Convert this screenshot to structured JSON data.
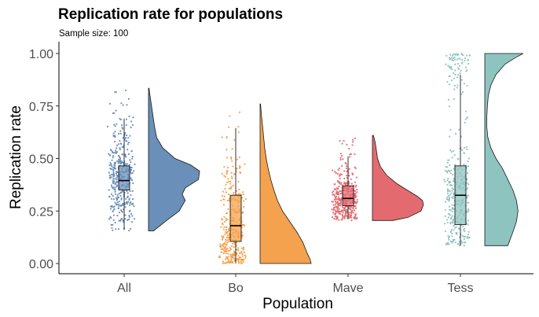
{
  "chart_data": {
    "type": "raincloud",
    "title": "Replication rate for populations",
    "subtitle": "Sample size: 100",
    "xlabel": "Population",
    "ylabel": "Replication rate",
    "ylim": [
      -0.04,
      1.03
    ],
    "y_ticks": [
      0.0,
      0.25,
      0.5,
      0.75,
      1.0
    ],
    "y_tick_labels": [
      "0.00",
      "0.25",
      "0.50",
      "0.75",
      "1.00"
    ],
    "grid": false,
    "legend": "none",
    "categories": [
      "All",
      "Bo",
      "Mave",
      "Tess"
    ],
    "series": [
      {
        "category": "All",
        "color": "#6a8fb8",
        "box": {
          "whisker_low": 0.16,
          "q1": 0.35,
          "median": 0.395,
          "q3": 0.465,
          "whisker_high": 0.69
        },
        "points_range": [
          0.15,
          0.83
        ],
        "density": {
          "y": [
            0.155,
            0.2,
            0.25,
            0.3,
            0.33,
            0.36,
            0.4,
            0.44,
            0.47,
            0.5,
            0.55,
            0.6,
            0.65,
            0.7,
            0.75,
            0.8,
            0.835
          ],
          "d": [
            0.1,
            0.33,
            0.6,
            0.72,
            0.66,
            0.72,
            0.98,
            1.0,
            0.82,
            0.52,
            0.28,
            0.16,
            0.12,
            0.09,
            0.06,
            0.03,
            0.01
          ]
        }
      },
      {
        "category": "Bo",
        "color": "#f4a24e",
        "box": {
          "whisker_low": 0.0,
          "q1": 0.105,
          "median": 0.18,
          "q3": 0.325,
          "whisker_high": 0.645
        },
        "points_range": [
          0.0,
          0.76
        ],
        "density": {
          "y": [
            0.0,
            0.02,
            0.05,
            0.1,
            0.15,
            0.2,
            0.25,
            0.3,
            0.35,
            0.4,
            0.45,
            0.5,
            0.55,
            0.6,
            0.65,
            0.7,
            0.76
          ],
          "d": [
            1.0,
            0.98,
            0.92,
            0.84,
            0.72,
            0.58,
            0.44,
            0.34,
            0.27,
            0.21,
            0.16,
            0.12,
            0.09,
            0.07,
            0.05,
            0.03,
            0.01
          ]
        }
      },
      {
        "category": "Mave",
        "color": "#e36b70",
        "box": {
          "whisker_low": 0.21,
          "q1": 0.275,
          "median": 0.31,
          "q3": 0.37,
          "whisker_high": 0.51
        },
        "points_range": [
          0.2,
          0.62
        ],
        "density": {
          "y": [
            0.205,
            0.22,
            0.25,
            0.28,
            0.3,
            0.32,
            0.35,
            0.38,
            0.42,
            0.46,
            0.5,
            0.55,
            0.58,
            0.61
          ],
          "d": [
            0.4,
            0.7,
            0.95,
            1.0,
            0.98,
            0.88,
            0.68,
            0.48,
            0.28,
            0.16,
            0.1,
            0.07,
            0.05,
            0.02
          ]
        }
      },
      {
        "category": "Tess",
        "color": "#8ec4c0",
        "box": {
          "whisker_low": 0.085,
          "q1": 0.185,
          "median": 0.325,
          "q3": 0.465,
          "whisker_high": 0.9
        },
        "points_range": [
          0.08,
          1.0
        ],
        "density": {
          "y": [
            0.085,
            0.15,
            0.2,
            0.25,
            0.3,
            0.35,
            0.4,
            0.45,
            0.5,
            0.55,
            0.6,
            0.65,
            0.7,
            0.75,
            0.8,
            0.85,
            0.9,
            0.95,
            0.98,
            1.0
          ],
          "d": [
            0.45,
            0.55,
            0.62,
            0.65,
            0.62,
            0.55,
            0.45,
            0.35,
            0.22,
            0.12,
            0.06,
            0.04,
            0.04,
            0.05,
            0.07,
            0.12,
            0.22,
            0.4,
            0.6,
            0.75
          ]
        }
      }
    ]
  }
}
